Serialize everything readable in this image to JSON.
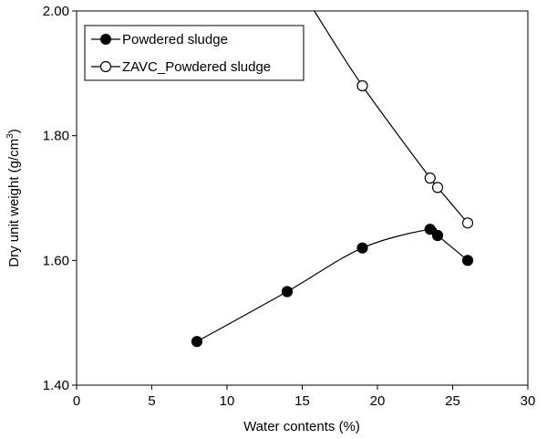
{
  "chart_data": {
    "type": "scatter",
    "xlabel": "Water contents (%)",
    "ylabel_main": "Dry unit weight (g/cm",
    "ylabel_sup": "3",
    "ylabel_end": ")",
    "xlim": [
      0,
      30
    ],
    "ylim": [
      1.4,
      2.0
    ],
    "xticks": [
      0,
      5,
      10,
      15,
      20,
      25,
      30
    ],
    "xtick_labels": [
      "0",
      "5",
      "10",
      "15",
      "20",
      "25",
      "30"
    ],
    "yticks": [
      1.4,
      1.6,
      1.8,
      2.0
    ],
    "ytick_labels": [
      "1.40",
      "1.60",
      "1.80",
      "2.00"
    ],
    "grid": false,
    "legend_position": "top-left",
    "series": [
      {
        "name": "Powdered sludge",
        "marker": "filled-circle",
        "x": [
          8,
          14,
          19,
          23.5,
          24,
          26
        ],
        "y": [
          1.47,
          1.55,
          1.62,
          1.65,
          1.64,
          1.6
        ],
        "color": "#000000"
      },
      {
        "name": "ZAVC_Powdered sludge",
        "marker": "open-circle",
        "x": [
          19,
          23.5,
          24,
          26
        ],
        "y": [
          1.88,
          1.732,
          1.717,
          1.66
        ],
        "color": "#000000",
        "line_extends_to": [
          15.8,
          2.0
        ]
      }
    ]
  }
}
